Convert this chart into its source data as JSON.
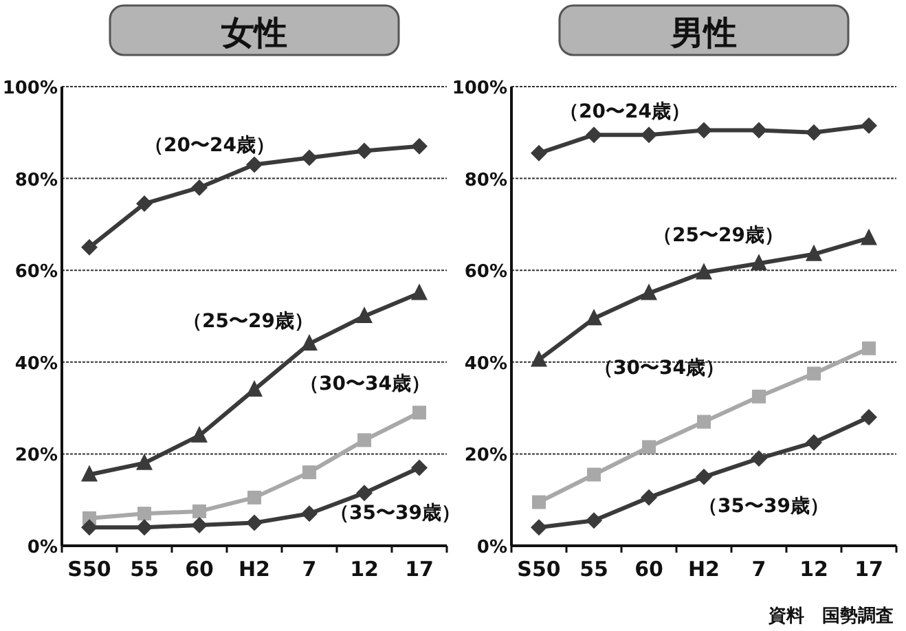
{
  "chart_data": [
    {
      "type": "line",
      "title": "女性",
      "categories": [
        "S50",
        "55",
        "60",
        "H2",
        "7",
        "12",
        "17"
      ],
      "ylim": [
        0,
        100
      ],
      "yticks": [
        {
          "value": 0,
          "label": "0%"
        },
        {
          "value": 20,
          "label": "20%"
        },
        {
          "value": 40,
          "label": "40%"
        },
        {
          "value": 60,
          "label": "60%"
        },
        {
          "value": 80,
          "label": "80%"
        },
        {
          "value": 100,
          "label": "100%"
        }
      ],
      "grid": "y",
      "legend": false,
      "series": [
        {
          "name": "（20〜24歳）",
          "color": "#3a3a3a",
          "marker": "diamond",
          "values": [
            65,
            74.5,
            78,
            83,
            84.5,
            86,
            87
          ]
        },
        {
          "name": "（25〜29歳）",
          "color": "#3a3a3a",
          "marker": "triangle",
          "values": [
            15.5,
            18,
            24,
            34,
            44,
            50,
            55
          ]
        },
        {
          "name": "（30〜34歳）",
          "color": "#a8a8a8",
          "marker": "square",
          "values": [
            6,
            7,
            7.5,
            10.5,
            16,
            23,
            29
          ]
        },
        {
          "name": "（35〜39歳）",
          "color": "#3a3a3a",
          "marker": "diamond",
          "values": [
            4,
            4,
            4.5,
            5,
            7,
            11.5,
            17
          ]
        }
      ]
    },
    {
      "type": "line",
      "title": "男性",
      "categories": [
        "S50",
        "55",
        "60",
        "H2",
        "7",
        "12",
        "17"
      ],
      "ylim": [
        0,
        100
      ],
      "yticks": [
        {
          "value": 0,
          "label": "0%"
        },
        {
          "value": 20,
          "label": "20%"
        },
        {
          "value": 40,
          "label": "40%"
        },
        {
          "value": 60,
          "label": "60%"
        },
        {
          "value": 80,
          "label": "80%"
        },
        {
          "value": 100,
          "label": "100%"
        }
      ],
      "grid": "y",
      "legend": false,
      "annotations": [
        "資料　国勢調査"
      ],
      "series": [
        {
          "name": "（20〜24歳）",
          "color": "#3a3a3a",
          "marker": "diamond",
          "values": [
            85.5,
            89.5,
            89.5,
            90.5,
            90.5,
            90,
            91.5
          ]
        },
        {
          "name": "（25〜29歳）",
          "color": "#3a3a3a",
          "marker": "triangle",
          "values": [
            40.5,
            49.5,
            55,
            59.5,
            61.5,
            63.5,
            67
          ]
        },
        {
          "name": "（30〜34歳）",
          "color": "#a8a8a8",
          "marker": "square",
          "values": [
            9.5,
            15.5,
            21.5,
            27,
            32.5,
            37.5,
            43
          ]
        },
        {
          "name": "（35〜39歳）",
          "color": "#3a3a3a",
          "marker": "diamond",
          "values": [
            4,
            5.5,
            10.5,
            15,
            19,
            22.5,
            28
          ]
        }
      ]
    }
  ]
}
